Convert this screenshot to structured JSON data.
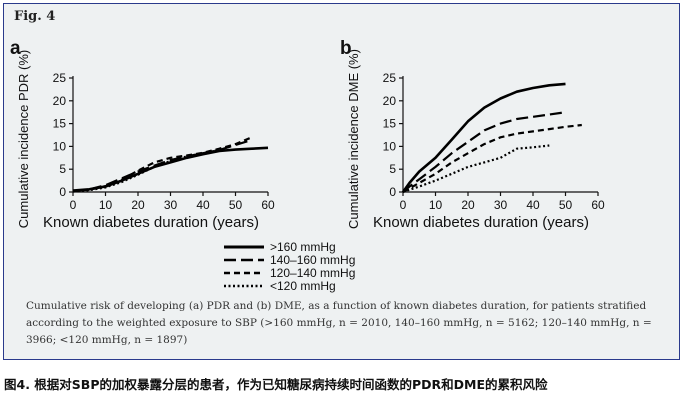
{
  "figure": {
    "label": "Fig. 4",
    "legend": [
      {
        "label": ">160 mmHg",
        "style": "solid"
      },
      {
        "label": "140–160 mmHg",
        "style": "longdash"
      },
      {
        "label": "120–140 mmHg",
        "style": "shortdash"
      },
      {
        "label": "<120 mmHg",
        "style": "dotted"
      }
    ],
    "caption": "Cumulative risk of developing (a) PDR and (b) DME, as a function of known diabetes duration, for patients stratified according to the weighted exposure to SBP (>160 mmHg, n = 2010, 140–160 mmHg, n = 5162; 120–140 mmHg, n = 3966; <120 mmHg, n = 1897)",
    "cn_caption": "图4. 根据对SBP的加权暴露分层的患者，作为已知糖尿病持续时间函数的PDR和DME的累积风险"
  },
  "chart_data": [
    {
      "type": "line",
      "panel": "a",
      "xlabel": "Known diabetes duration (years)",
      "ylabel": "Cumulative incidence PDR (%)",
      "xlim": [
        0,
        60
      ],
      "ylim": [
        0,
        25
      ],
      "xticks": [
        0,
        10,
        20,
        30,
        40,
        50,
        60
      ],
      "yticks": [
        0,
        5,
        10,
        15,
        20,
        25
      ],
      "series": [
        {
          "name": ">160 mmHg",
          "style": "solid",
          "x": [
            0,
            5,
            10,
            15,
            20,
            25,
            30,
            35,
            40,
            45,
            50,
            55,
            60
          ],
          "y": [
            0.3,
            0.6,
            1.2,
            2.5,
            4.0,
            5.5,
            6.5,
            7.5,
            8.3,
            9.0,
            9.3,
            9.5,
            9.7
          ]
        },
        {
          "name": "140–160 mmHg",
          "style": "longdash",
          "x": [
            0,
            5,
            10,
            15,
            20,
            25,
            30,
            35,
            40,
            45,
            50,
            54
          ],
          "y": [
            0.2,
            0.6,
            1.5,
            3.0,
            4.5,
            5.8,
            7.0,
            7.8,
            8.5,
            9.2,
            10.3,
            11.2
          ]
        },
        {
          "name": "120–140 mmHg",
          "style": "shortdash",
          "x": [
            0,
            5,
            10,
            15,
            20,
            25,
            30,
            35,
            40,
            45,
            50,
            55
          ],
          "y": [
            0.2,
            0.5,
            1.3,
            2.7,
            4.7,
            6.5,
            7.5,
            8.0,
            8.6,
            9.5,
            10.5,
            12.0
          ]
        },
        {
          "name": "<120 mmHg",
          "style": "dotted",
          "x": [
            0,
            5,
            10,
            15,
            20,
            25,
            30,
            35,
            40,
            45
          ],
          "y": [
            0.1,
            0.4,
            1.0,
            2.2,
            3.8,
            5.5,
            6.8,
            7.8,
            8.5,
            9.2
          ]
        }
      ]
    },
    {
      "type": "line",
      "panel": "b",
      "xlabel": "Known diabetes duration (years)",
      "ylabel": "Cumulative incidence DME (%)",
      "xlim": [
        0,
        60
      ],
      "ylim": [
        0,
        25
      ],
      "xticks": [
        0,
        10,
        20,
        30,
        40,
        50,
        60
      ],
      "yticks": [
        0,
        5,
        10,
        15,
        20,
        25
      ],
      "series": [
        {
          "name": ">160 mmHg",
          "style": "solid",
          "x": [
            0,
            2,
            5,
            10,
            15,
            20,
            25,
            30,
            35,
            40,
            45,
            50
          ],
          "y": [
            0,
            2.0,
            4.5,
            7.5,
            11.5,
            15.5,
            18.5,
            20.5,
            22.0,
            22.8,
            23.4,
            23.7
          ]
        },
        {
          "name": "140–160 mmHg",
          "style": "longdash",
          "x": [
            0,
            2,
            5,
            10,
            15,
            20,
            25,
            30,
            35,
            40,
            45,
            50
          ],
          "y": [
            0,
            1.2,
            2.8,
            5.5,
            8.5,
            11.0,
            13.5,
            15.0,
            16.0,
            16.5,
            17.0,
            17.5
          ]
        },
        {
          "name": "120–140 mmHg",
          "style": "shortdash",
          "x": [
            0,
            2,
            5,
            10,
            15,
            20,
            25,
            30,
            35,
            40,
            45,
            50,
            55
          ],
          "y": [
            0,
            0.8,
            2.0,
            4.0,
            6.5,
            8.5,
            10.5,
            12.0,
            12.8,
            13.3,
            13.8,
            14.3,
            14.7
          ]
        },
        {
          "name": "<120 mmHg",
          "style": "dotted",
          "x": [
            0,
            2,
            5,
            10,
            15,
            20,
            25,
            30,
            35,
            40,
            45
          ],
          "y": [
            0,
            0.5,
            1.2,
            2.5,
            4.0,
            5.5,
            6.5,
            7.5,
            9.5,
            9.8,
            10.2
          ]
        }
      ]
    }
  ]
}
